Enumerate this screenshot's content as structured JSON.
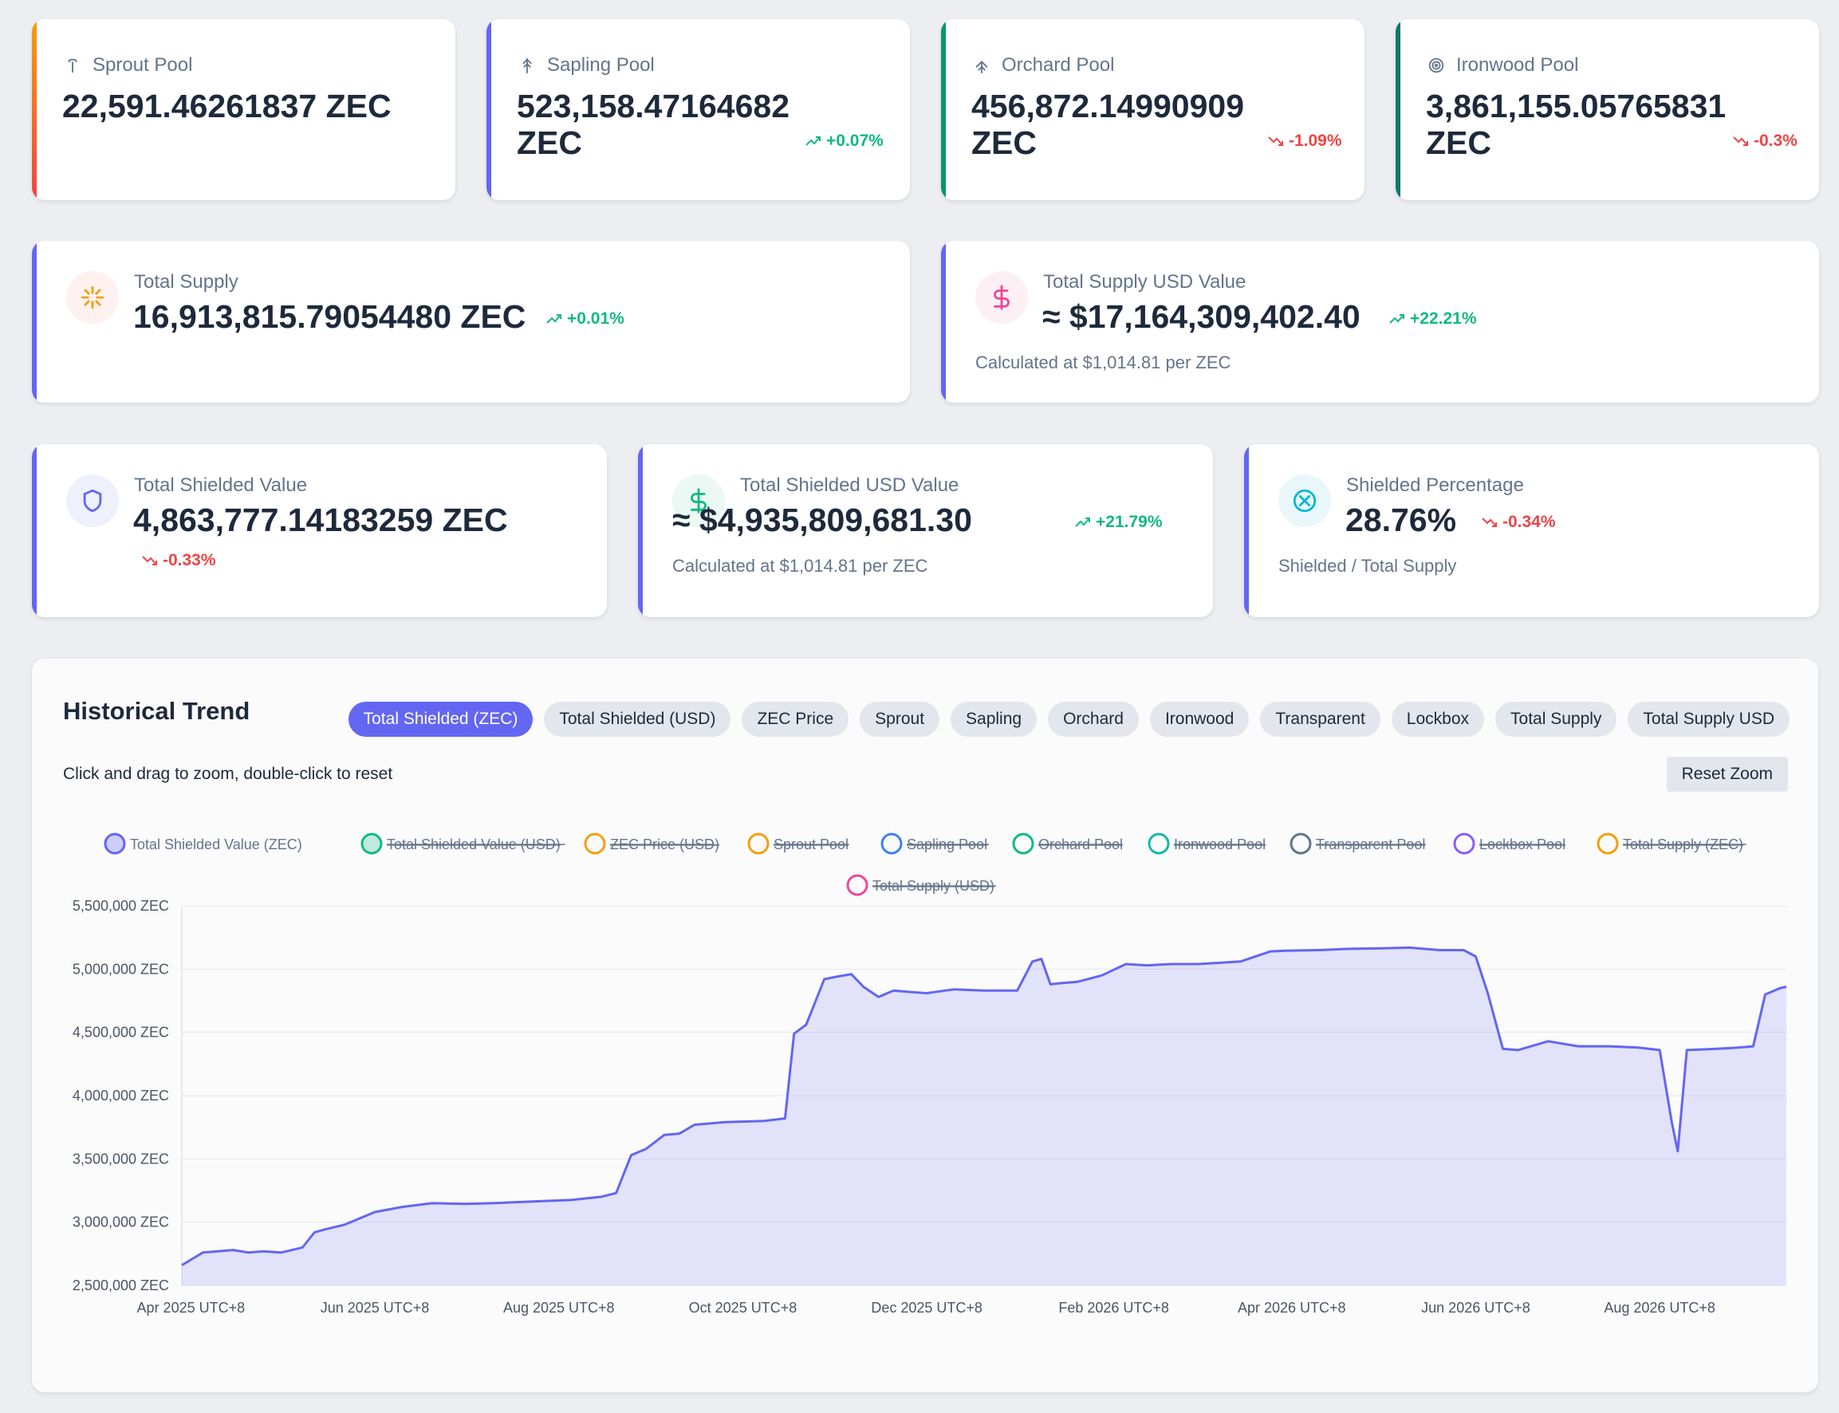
{
  "pools": [
    {
      "name": "Sprout Pool",
      "value": "22,591.46261837 ZEC",
      "change": "",
      "direction": "",
      "accent": "#f59e0b",
      "accent2": "#ef4444",
      "icon": "sprout-icon"
    },
    {
      "name": "Sapling Pool",
      "value": "523,158.47164682 ZEC",
      "change": "+0.07%",
      "direction": "up",
      "accent": "#6366f1",
      "icon": "sapling-tree-icon"
    },
    {
      "name": "Orchard Pool",
      "value": "456,872.14990909 ZEC",
      "change": "-1.09%",
      "direction": "down",
      "accent": "#059669",
      "icon": "orchard-tree-icon"
    },
    {
      "name": "Ironwood Pool",
      "value": "3,861,155.05765831 ZEC",
      "change": "-0.3%",
      "direction": "down",
      "accent": "#0f766e",
      "icon": "ironwood-rings-icon"
    }
  ],
  "total_supply": {
    "label": "Total Supply",
    "value": "16,913,815.79054480 ZEC",
    "change": "+0.01%",
    "icon": "sparkle-icon"
  },
  "total_supply_usd": {
    "label": "Total Supply USD Value",
    "value": "≈ $17,164,309,402.40",
    "change": "+22.21%",
    "sub": "Calculated at $1,014.81 per ZEC",
    "icon": "dollar-icon"
  },
  "total_shielded": {
    "label": "Total Shielded Value",
    "value": "4,863,777.14183259 ZEC",
    "change": "-0.33%",
    "icon": "shield-icon"
  },
  "total_shielded_usd": {
    "label": "Total Shielded USD Value",
    "value": "≈ $4,935,809,681.30",
    "change": "+21.79%",
    "sub": "Calculated at $1,014.81 per ZEC",
    "icon": "dollar-icon"
  },
  "shielded_pct": {
    "label": "Shielded Percentage",
    "value": "28.76%",
    "change": "-0.34%",
    "sub": "Shielded / Total Supply",
    "icon": "circle-x-icon"
  },
  "chart_panel": {
    "title": "Historical Trend",
    "tabs": [
      "Total Shielded (ZEC)",
      "Total Shielded (USD)",
      "ZEC Price",
      "Sprout",
      "Sapling",
      "Orchard",
      "Ironwood",
      "Transparent",
      "Lockbox",
      "Total Supply",
      "Total Supply USD"
    ],
    "active_tab": "Total Shielded (ZEC)",
    "hint": "Click and drag to zoom, double-click to reset",
    "reset_label": "Reset Zoom"
  },
  "colors": {
    "up": "#10b981",
    "down": "#ef4444",
    "primary": "#6366f1"
  },
  "chart_data": {
    "type": "area",
    "ylabel_suffix": " ZEC",
    "ylim": [
      2500000,
      5500000
    ],
    "yticks": [
      "2,500,000 ZEC",
      "3,000,000 ZEC",
      "3,500,000 ZEC",
      "4,000,000 ZEC",
      "4,500,000 ZEC",
      "5,000,000 ZEC",
      "5,500,000 ZEC"
    ],
    "xticks": [
      "Apr 2025 UTC+8",
      "Jun 2025 UTC+8",
      "Aug 2025 UTC+8",
      "Oct 2025 UTC+8",
      "Dec 2025 UTC+8",
      "Feb 2026 UTC+8",
      "Apr 2026 UTC+8",
      "Jun 2026 UTC+8",
      "Aug 2026 UTC+8"
    ],
    "grid": true,
    "legend_position": "top",
    "legend": [
      {
        "name": "Total Shielded Value (ZEC)",
        "color": "#6366f1",
        "hidden": false
      },
      {
        "name": "Total Shielded Value (USD)",
        "color": "#10b981",
        "hidden": true
      },
      {
        "name": "ZEC Price (USD)",
        "color": "#f59e0b",
        "hidden": true
      },
      {
        "name": "Sprout Pool",
        "color": "#f59e0b",
        "hidden": true
      },
      {
        "name": "Sapling Pool",
        "color": "#3b82f6",
        "hidden": true
      },
      {
        "name": "Orchard Pool",
        "color": "#10b981",
        "hidden": true
      },
      {
        "name": "Ironwood Pool",
        "color": "#14b8a6",
        "hidden": true
      },
      {
        "name": "Transparent Pool",
        "color": "#64748b",
        "hidden": true
      },
      {
        "name": "Lockbox Pool",
        "color": "#8b5cf6",
        "hidden": true
      },
      {
        "name": "Total Supply (ZEC)",
        "color": "#f59e0b",
        "hidden": true
      },
      {
        "name": "Total Supply (USD)",
        "color": "#ec4899",
        "hidden": true
      }
    ],
    "series": [
      {
        "name": "Total Shielded Value (ZEC)",
        "x": [
          "2025-03-29",
          "2025-04-05",
          "2025-04-15",
          "2025-04-20",
          "2025-04-25",
          "2025-05-01",
          "2025-05-08",
          "2025-05-12",
          "2025-05-15",
          "2025-05-22",
          "2025-06-01",
          "2025-06-10",
          "2025-06-20",
          "2025-07-01",
          "2025-07-10",
          "2025-07-25",
          "2025-08-05",
          "2025-08-15",
          "2025-08-20",
          "2025-08-25",
          "2025-08-30",
          "2025-09-05",
          "2025-09-10",
          "2025-09-15",
          "2025-09-25",
          "2025-10-08",
          "2025-10-15",
          "2025-10-18",
          "2025-10-22",
          "2025-10-28",
          "2025-11-01",
          "2025-11-06",
          "2025-11-10",
          "2025-11-15",
          "2025-11-20",
          "2025-11-25",
          "2025-12-01",
          "2025-12-10",
          "2025-12-20",
          "2025-12-31",
          "2026-01-05",
          "2026-01-08",
          "2026-01-11",
          "2026-01-15",
          "2026-01-20",
          "2026-01-28",
          "2026-02-05",
          "2026-02-12",
          "2026-02-20",
          "2026-03-01",
          "2026-03-15",
          "2026-03-25",
          "2026-03-30",
          "2026-04-10",
          "2026-04-20",
          "2026-05-01",
          "2026-05-10",
          "2026-05-20",
          "2026-05-28",
          "2026-06-01",
          "2026-06-05",
          "2026-06-10",
          "2026-06-15",
          "2026-06-25",
          "2026-07-05",
          "2026-07-15",
          "2026-07-25",
          "2026-08-01",
          "2026-08-05",
          "2026-08-07",
          "2026-08-10",
          "2026-08-20",
          "2026-08-27",
          "2026-09-01",
          "2026-09-05",
          "2026-09-10",
          "2026-09-12"
        ],
        "y": [
          2660000,
          2760000,
          2780000,
          2760000,
          2770000,
          2760000,
          2800000,
          2920000,
          2940000,
          2980000,
          3080000,
          3120000,
          3150000,
          3145000,
          3150000,
          3165000,
          3175000,
          3200000,
          3230000,
          3530000,
          3580000,
          3690000,
          3700000,
          3770000,
          3790000,
          3800000,
          3820000,
          4490000,
          4560000,
          4920000,
          4940000,
          4960000,
          4860000,
          4780000,
          4830000,
          4820000,
          4810000,
          4840000,
          4830000,
          4830000,
          5060000,
          5080000,
          4880000,
          4890000,
          4900000,
          4950000,
          5040000,
          5030000,
          5040000,
          5040000,
          5060000,
          5140000,
          5145000,
          5150000,
          5160000,
          5165000,
          5170000,
          5150000,
          5150000,
          5100000,
          4810000,
          4370000,
          4360000,
          4430000,
          4390000,
          4390000,
          4380000,
          4360000,
          3790000,
          3560000,
          4360000,
          4370000,
          4380000,
          4390000,
          4800000,
          4850000,
          4860000
        ]
      }
    ]
  }
}
